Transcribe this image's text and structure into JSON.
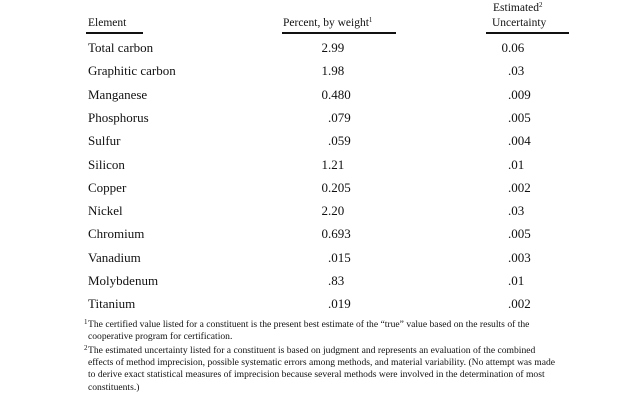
{
  "table": {
    "headers": {
      "element": "Element",
      "percent": "Percent, by weight",
      "percent_note": "1",
      "uncertainty_line1": "Estimated",
      "uncertainty_note": "2",
      "uncertainty_line2": "Uncertainty"
    },
    "rows": [
      {
        "element": "Total carbon",
        "percent": [
          "2",
          ".99"
        ],
        "uncertainty": [
          "0",
          ".06"
        ]
      },
      {
        "element": "Graphitic carbon",
        "percent": [
          "1",
          ".98"
        ],
        "uncertainty": [
          "",
          ".03"
        ]
      },
      {
        "element": "Manganese",
        "percent": [
          "0",
          ".480"
        ],
        "uncertainty": [
          "",
          ".009"
        ]
      },
      {
        "element": "Phosphorus",
        "percent": [
          "",
          ".079"
        ],
        "uncertainty": [
          "",
          ".005"
        ]
      },
      {
        "element": "Sulfur",
        "percent": [
          "",
          ".059"
        ],
        "uncertainty": [
          "",
          ".004"
        ]
      },
      {
        "element": "Silicon",
        "percent": [
          "1",
          ".21"
        ],
        "uncertainty": [
          "",
          ".01"
        ]
      },
      {
        "element": "Copper",
        "percent": [
          "0",
          ".205"
        ],
        "uncertainty": [
          "",
          ".002"
        ]
      },
      {
        "element": "Nickel",
        "percent": [
          "2",
          ".20"
        ],
        "uncertainty": [
          "",
          ".03"
        ]
      },
      {
        "element": "Chromium",
        "percent": [
          "0",
          ".693"
        ],
        "uncertainty": [
          "",
          ".005"
        ]
      },
      {
        "element": "Vanadium",
        "percent": [
          "",
          ".015"
        ],
        "uncertainty": [
          "",
          ".003"
        ]
      },
      {
        "element": "Molybdenum",
        "percent": [
          "",
          ".83"
        ],
        "uncertainty": [
          "",
          ".01"
        ]
      },
      {
        "element": "Titanium",
        "percent": [
          "",
          ".019"
        ],
        "uncertainty": [
          "",
          ".002"
        ]
      }
    ]
  },
  "footnotes": [
    {
      "mark": "1",
      "text": "The certified value listed for a constituent is the present best estimate of the “true” value based on the results of the cooperative program for certification."
    },
    {
      "mark": "2",
      "text": "The estimated uncertainty listed for a constituent is based on judgment and represents an evaluation of the combined effects of method imprecision, possible systematic errors among methods, and material variability.  (No attempt was made to derive exact statistical measures of imprecision because several methods were involved in the determination of most constituents.)"
    }
  ]
}
